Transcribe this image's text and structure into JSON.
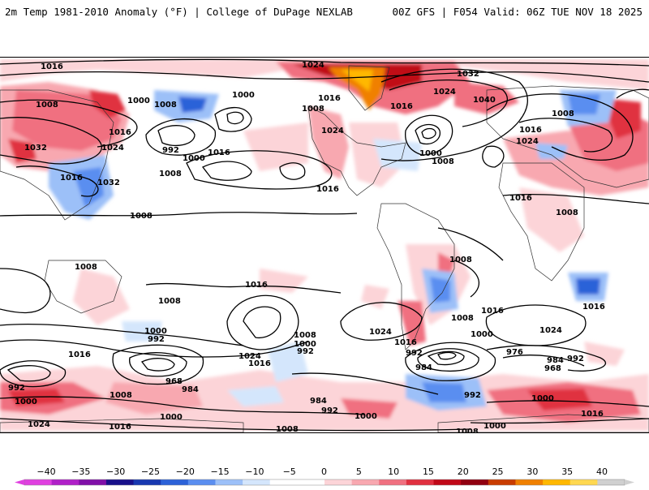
{
  "header": {
    "title_left": "2m Temp 1981-2010 Anomaly (°F) | College of DuPage NEXLAB",
    "title_right": "00Z GFS | F054 Valid: 06Z TUE NOV 18 2025"
  },
  "legend": {
    "ticks": [
      "-40",
      "-35",
      "-30",
      "-25",
      "-20",
      "-15",
      "-10",
      "-5",
      "0",
      "5",
      "10",
      "15",
      "20",
      "25",
      "30",
      "35",
      "40"
    ],
    "colors": [
      "#e040e0",
      "#b020c8",
      "#8010a8",
      "#18108a",
      "#1838b0",
      "#2c62d8",
      "#5a8ef0",
      "#9cc0f8",
      "#d4e6fc",
      "#ffffff",
      "#ffffff",
      "#fcd4d8",
      "#f8a8b0",
      "#f07080",
      "#e03040",
      "#c00818",
      "#900010",
      "#c83c00",
      "#f08000",
      "#ffb800",
      "#ffd850",
      "#d0d0d0"
    ]
  },
  "isobar_labels": [
    {
      "text": "1016"
    },
    {
      "text": "1008"
    },
    {
      "text": "1000"
    },
    {
      "text": "1024"
    },
    {
      "text": "1016"
    },
    {
      "text": "1032"
    },
    {
      "text": "1024"
    },
    {
      "text": "1016"
    },
    {
      "text": "1032"
    },
    {
      "text": "1008"
    },
    {
      "text": "992"
    },
    {
      "text": "1000"
    },
    {
      "text": "1016"
    },
    {
      "text": "1000"
    },
    {
      "text": "1008"
    },
    {
      "text": "1008"
    },
    {
      "text": "1024"
    },
    {
      "text": "1016"
    },
    {
      "text": "1032"
    },
    {
      "text": "1040"
    },
    {
      "text": "1024"
    },
    {
      "text": "1016"
    },
    {
      "text": "1000"
    },
    {
      "text": "1008"
    },
    {
      "text": "1008"
    },
    {
      "text": "1016"
    },
    {
      "text": "1024"
    },
    {
      "text": "1016"
    },
    {
      "text": "1016"
    },
    {
      "text": "1008"
    },
    {
      "text": "1008"
    },
    {
      "text": "1008"
    },
    {
      "text": "1008"
    },
    {
      "text": "1016"
    },
    {
      "text": "1008"
    },
    {
      "text": "1016"
    },
    {
      "text": "1008"
    },
    {
      "text": "1016"
    },
    {
      "text": "1024"
    },
    {
      "text": "1000"
    },
    {
      "text": "992"
    },
    {
      "text": "1016"
    },
    {
      "text": "1024"
    },
    {
      "text": "1016"
    },
    {
      "text": "1008"
    },
    {
      "text": "1000"
    },
    {
      "text": "992"
    },
    {
      "text": "968"
    },
    {
      "text": "984"
    },
    {
      "text": "1016"
    },
    {
      "text": "992"
    },
    {
      "text": "984"
    },
    {
      "text": "1000"
    },
    {
      "text": "976"
    },
    {
      "text": "984"
    },
    {
      "text": "992"
    },
    {
      "text": "968"
    },
    {
      "text": "992"
    },
    {
      "text": "1000"
    },
    {
      "text": "1008"
    },
    {
      "text": "1000"
    },
    {
      "text": "1024"
    },
    {
      "text": "1016"
    },
    {
      "text": "1008"
    },
    {
      "text": "1000"
    },
    {
      "text": "984"
    },
    {
      "text": "992"
    },
    {
      "text": "1000"
    },
    {
      "text": "1008"
    },
    {
      "text": "1000"
    },
    {
      "text": "992"
    },
    {
      "text": "1016"
    },
    {
      "text": "1024"
    }
  ]
}
